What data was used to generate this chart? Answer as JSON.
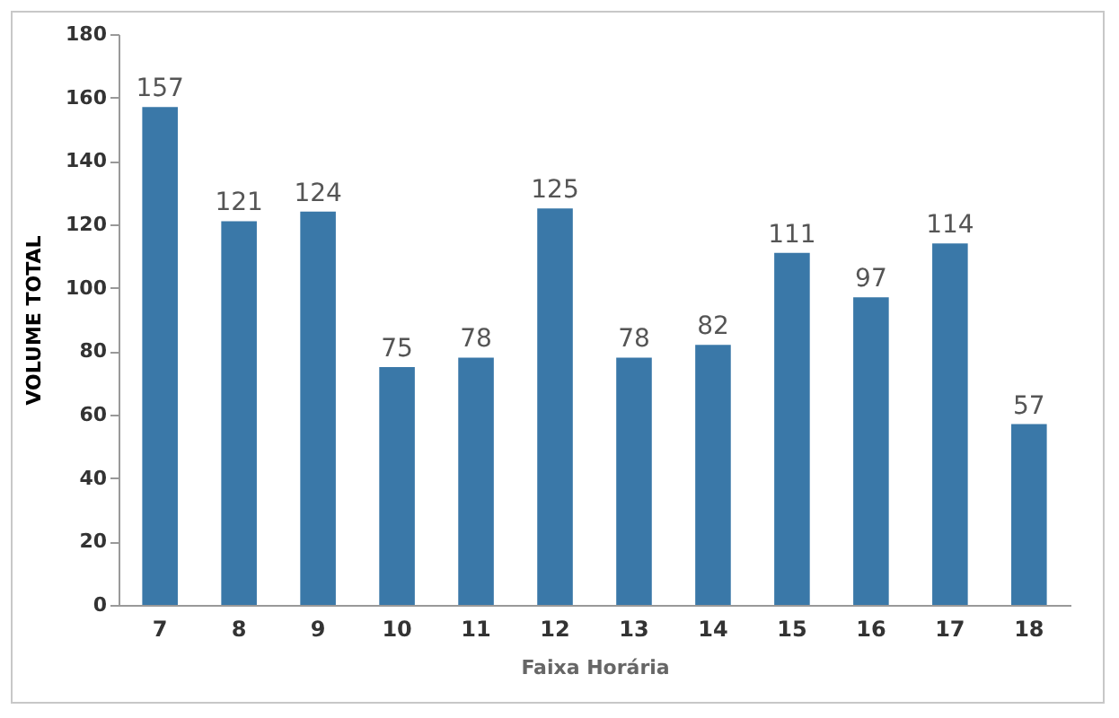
{
  "chart_data": {
    "type": "bar",
    "xlabel": "Faixa Horária",
    "ylabel": "VOLUME TOTAL",
    "categories": [
      "7",
      "8",
      "9",
      "10",
      "11",
      "12",
      "13",
      "14",
      "15",
      "16",
      "17",
      "18"
    ],
    "values": [
      157,
      121,
      124,
      75,
      78,
      125,
      78,
      82,
      111,
      97,
      114,
      57
    ],
    "color": "#3a78a8",
    "ylim": [
      0,
      180
    ],
    "yticks": [
      0,
      20,
      40,
      60,
      80,
      100,
      120,
      140,
      160,
      180
    ],
    "data_labels": true,
    "grid": false
  }
}
